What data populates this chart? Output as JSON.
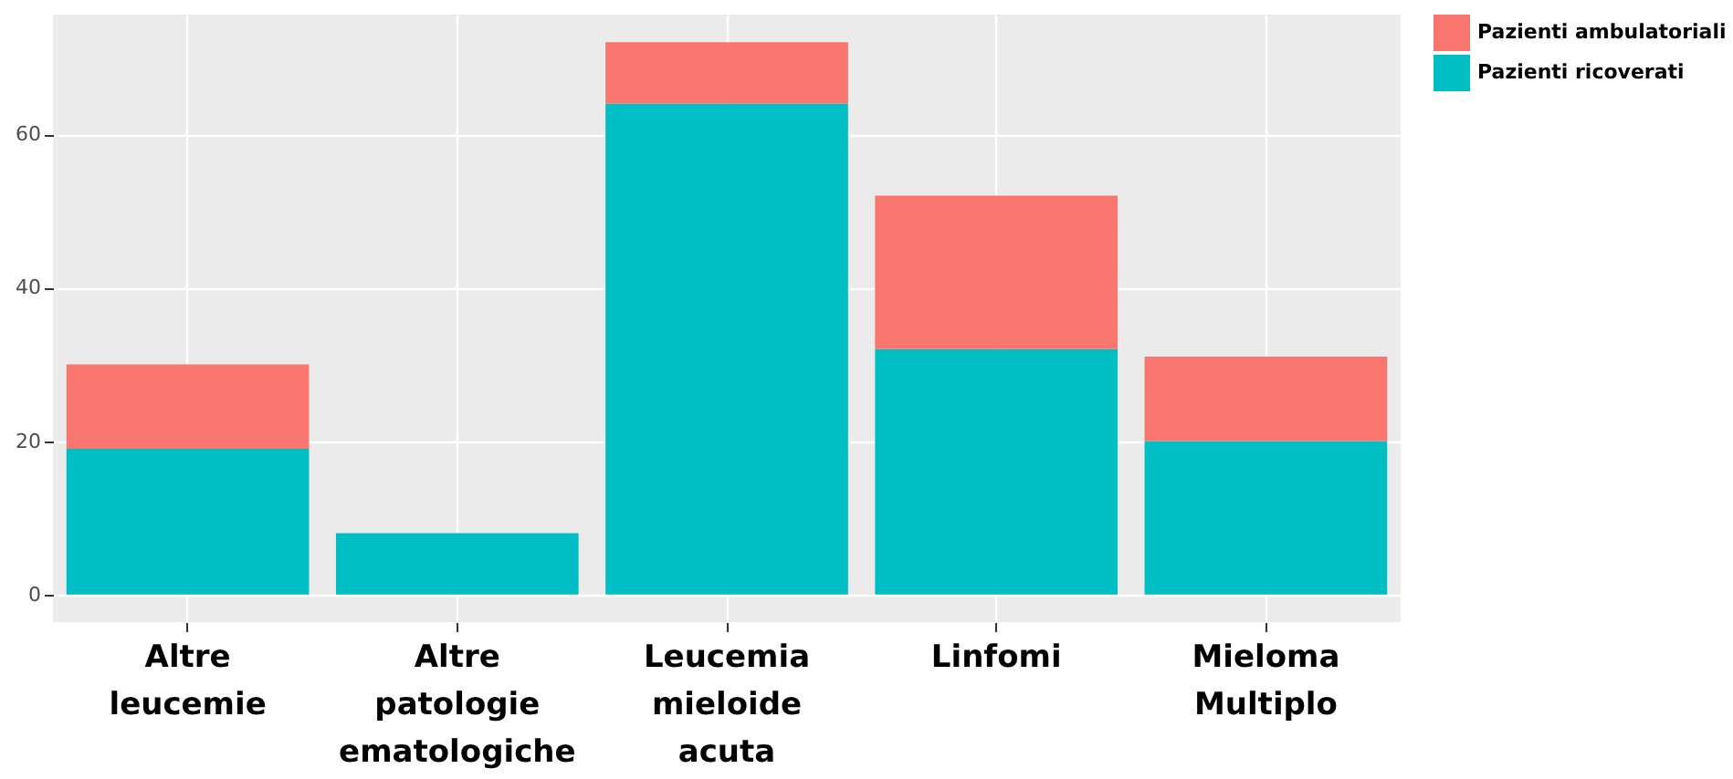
{
  "chart_data": {
    "type": "bar",
    "stacked": true,
    "categories": [
      "Altre leucemie",
      "Altre patologie ematologiche",
      "Leucemia mieloide acuta",
      "Linfomi",
      "Mieloma Multiplo"
    ],
    "series": [
      {
        "name": "Pazienti ricoverati",
        "color": "#00bfc4",
        "values": [
          19,
          8,
          64,
          32,
          20
        ]
      },
      {
        "name": "Pazienti ambulatoriali",
        "color": "#f8766d",
        "values": [
          11,
          0,
          8,
          20,
          11
        ]
      }
    ],
    "ylim": [
      -3.6,
      75.6
    ],
    "yticks": [
      0,
      20,
      40,
      60
    ],
    "grid": true,
    "legend": "right"
  }
}
